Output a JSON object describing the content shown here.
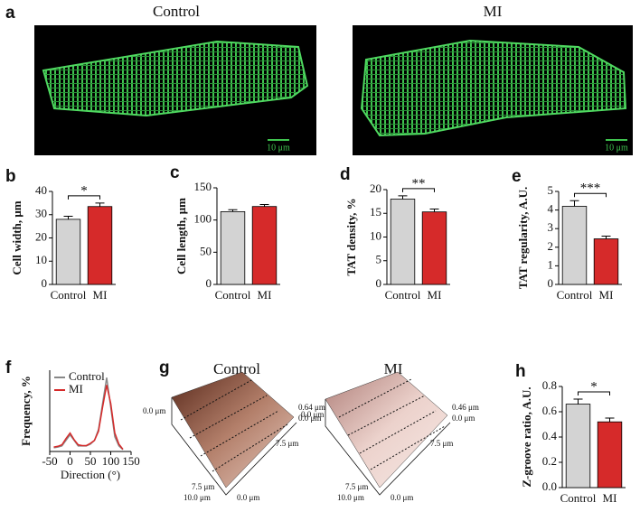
{
  "chart_data": [
    {
      "panel": "b",
      "type": "bar",
      "ylabel": "Cell width, μm",
      "categories": [
        "Control",
        "MI"
      ],
      "values": [
        28,
        33.5
      ],
      "errors": [
        1.3,
        1.5
      ],
      "colors": [
        "#d3d3d3",
        "#d62a2a"
      ],
      "ylim": [
        0,
        40
      ],
      "yticks": [
        0,
        10,
        20,
        30,
        40
      ],
      "significance": "*"
    },
    {
      "panel": "c",
      "type": "bar",
      "ylabel": "Cell length, μm",
      "categories": [
        "Control",
        "MI"
      ],
      "values": [
        113,
        121
      ],
      "errors": [
        3,
        3
      ],
      "colors": [
        "#d3d3d3",
        "#d62a2a"
      ],
      "ylim": [
        0,
        150
      ],
      "yticks": [
        0,
        50,
        100,
        150
      ]
    },
    {
      "panel": "d",
      "type": "bar",
      "ylabel": "TAT density, %",
      "categories": [
        "Control",
        "MI"
      ],
      "values": [
        18,
        15.3
      ],
      "errors": [
        0.7,
        0.6
      ],
      "colors": [
        "#d3d3d3",
        "#d62a2a"
      ],
      "ylim": [
        0,
        20
      ],
      "yticks": [
        0,
        5,
        10,
        15,
        20
      ],
      "significance": "**"
    },
    {
      "panel": "e",
      "type": "bar",
      "ylabel": "TAT regularity, A.U.",
      "categories": [
        "Control",
        "MI"
      ],
      "values": [
        4.2,
        2.45
      ],
      "errors": [
        0.3,
        0.15
      ],
      "colors": [
        "#d3d3d3",
        "#d62a2a"
      ],
      "ylim": [
        0,
        5
      ],
      "yticks": [
        0,
        1,
        2,
        3,
        4,
        5
      ],
      "significance": "***"
    },
    {
      "panel": "f",
      "type": "line",
      "ylabel": "Frequency, %",
      "xlabel": "Direction (°)",
      "x": [
        -40,
        -30,
        -20,
        -10,
        0,
        10,
        20,
        30,
        40,
        50,
        60,
        70,
        80,
        90,
        100,
        110,
        120,
        130
      ],
      "series": [
        {
          "name": "Control",
          "color": "#888888",
          "values": [
            1,
            1.2,
            1.5,
            3,
            4.5,
            3,
            1.5,
            1.5,
            1.5,
            2,
            3,
            6,
            13,
            20,
            12,
            4,
            1.5,
            0.5
          ]
        },
        {
          "name": "MI",
          "color": "#d62a2a",
          "values": [
            1.2,
            1.4,
            1.8,
            3.5,
            5,
            3.2,
            1.8,
            1.6,
            1.6,
            2.2,
            3,
            5.5,
            12,
            18,
            13,
            5,
            2,
            0.6
          ]
        }
      ],
      "xlim": [
        -50,
        150
      ],
      "xticks": [
        -50,
        0,
        50,
        100,
        150
      ],
      "ylim": [
        0,
        22
      ],
      "legend": "upper-left"
    },
    {
      "panel": "h",
      "type": "bar",
      "ylabel": "Z-groove ratio, A.U.",
      "categories": [
        "Control",
        "MI"
      ],
      "values": [
        0.66,
        0.52
      ],
      "errors": [
        0.04,
        0.03
      ],
      "colors": [
        "#d3d3d3",
        "#d62a2a"
      ],
      "ylim": [
        0,
        0.8
      ],
      "yticks": [
        {
          "value": 0,
          "label": "0.0"
        },
        {
          "value": 0.2,
          "label": "0.2"
        },
        {
          "value": 0.4,
          "label": "0.4"
        },
        {
          "value": 0.6,
          "label": "0.6"
        },
        {
          "value": 0.8,
          "label": "0.8"
        }
      ],
      "significance": "*"
    }
  ],
  "images": {
    "a": {
      "panel": "a",
      "labels": [
        "Control",
        "MI"
      ],
      "scale_bar": "10 μm"
    },
    "g": {
      "panel": "g",
      "labels": [
        "Control",
        "MI"
      ],
      "control_axes": [
        "0.0 μm",
        "0.64 μm",
        "0.0 μm",
        "7.5 μm",
        "7.5 μm",
        "10.0 μm",
        "0.0 μm"
      ],
      "mi_axes": [
        "0.0 μm",
        "0.46 μm",
        "0.0 μm",
        "7.5 μm",
        "7.5 μm",
        "10.0 μm",
        "0.0 μm"
      ]
    }
  }
}
